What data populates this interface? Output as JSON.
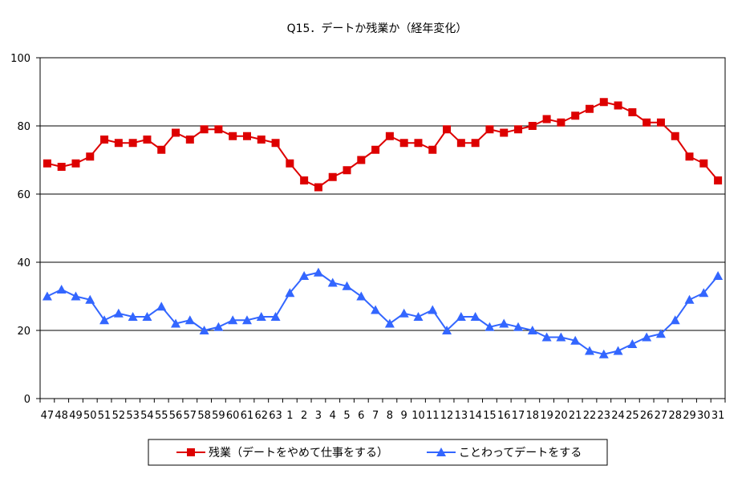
{
  "chart_data": {
    "type": "line",
    "title": "Q15．デートか残業か（経年変化）",
    "xlabel": "",
    "ylabel": "",
    "ylim": [
      0,
      100
    ],
    "yticks": [
      0,
      20,
      40,
      60,
      80,
      100
    ],
    "grid": true,
    "legend_position": "bottom",
    "categories": [
      "47",
      "48",
      "49",
      "50",
      "51",
      "52",
      "53",
      "54",
      "55",
      "56",
      "57",
      "58",
      "59",
      "60",
      "61",
      "62",
      "63",
      "1",
      "2",
      "3",
      "4",
      "5",
      "6",
      "7",
      "8",
      "9",
      "10",
      "11",
      "12",
      "13",
      "14",
      "15",
      "16",
      "17",
      "18",
      "19",
      "20",
      "21",
      "22",
      "23",
      "24",
      "25",
      "26",
      "27",
      "28",
      "29",
      "30",
      "31"
    ],
    "series": [
      {
        "name": "残業（デートをやめて仕事をする）",
        "color": "#dd0000",
        "marker": "square",
        "values": [
          69,
          68,
          69,
          71,
          76,
          75,
          75,
          76,
          73,
          78,
          76,
          79,
          79,
          77,
          77,
          76,
          75,
          69,
          64,
          62,
          65,
          67,
          70,
          73,
          77,
          75,
          75,
          73,
          79,
          75,
          75,
          79,
          78,
          79,
          80,
          82,
          81,
          83,
          85,
          87,
          86,
          84,
          81,
          81,
          77,
          71,
          69,
          64
        ]
      },
      {
        "name": "ことわってデートをする",
        "color": "#3366ff",
        "marker": "triangle",
        "values": [
          30,
          32,
          30,
          29,
          23,
          25,
          24,
          24,
          27,
          22,
          23,
          20,
          21,
          23,
          23,
          24,
          24,
          31,
          36,
          37,
          34,
          33,
          30,
          26,
          22,
          25,
          24,
          26,
          20,
          24,
          24,
          21,
          22,
          21,
          20,
          18,
          18,
          17,
          14,
          13,
          14,
          16,
          18,
          19,
          23,
          29,
          31,
          36
        ]
      }
    ]
  }
}
